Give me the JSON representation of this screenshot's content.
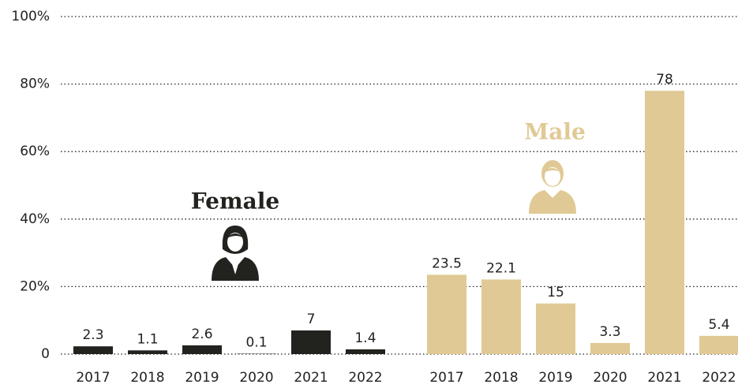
{
  "chart_data": {
    "type": "bar",
    "categories": [
      "2017",
      "2018",
      "2019",
      "2020",
      "2021",
      "2022"
    ],
    "series": [
      {
        "name": "Female",
        "color": "#22221f",
        "values": [
          2.3,
          1.1,
          2.6,
          0.1,
          7,
          1.4
        ]
      },
      {
        "name": "Male",
        "color": "#e0c994",
        "values": [
          23.5,
          22.1,
          15,
          3.3,
          78,
          5.4
        ]
      }
    ],
    "ylim": [
      0,
      100
    ],
    "yticks": [
      0,
      {
        "value": 20,
        "label": "20%"
      },
      {
        "value": 40,
        "label": "40%"
      },
      {
        "value": 60,
        "label": "60%"
      },
      {
        "value": 80,
        "label": "80%"
      },
      {
        "value": 100,
        "label": "100%"
      }
    ],
    "grid": true
  }
}
